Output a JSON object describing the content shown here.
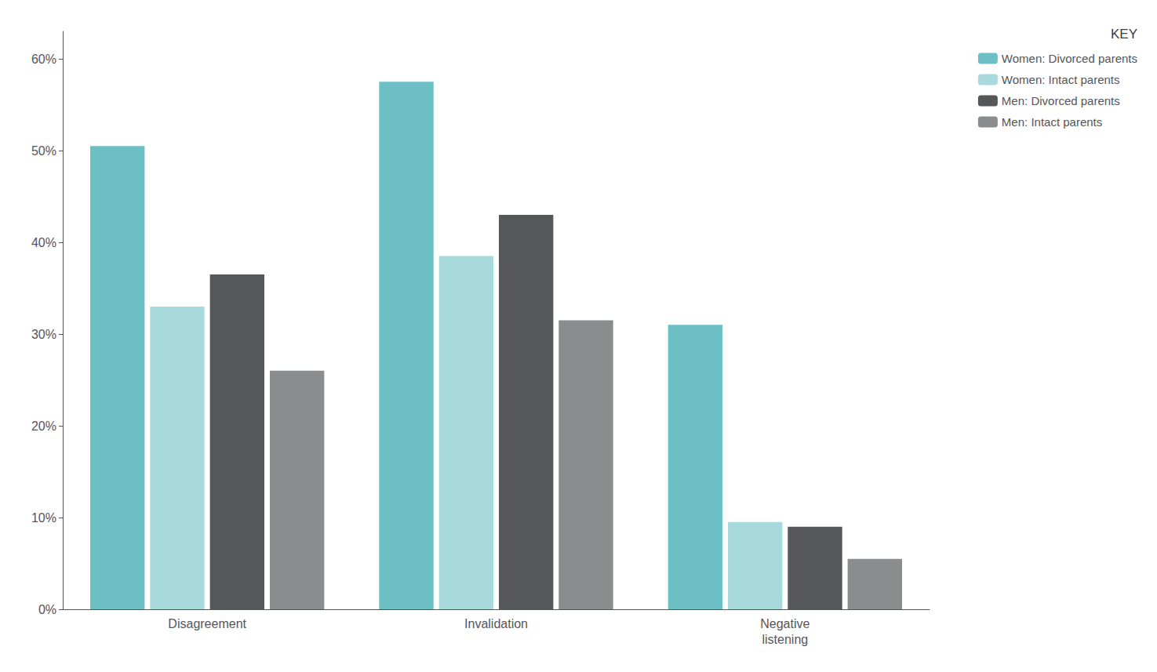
{
  "chart_data": {
    "type": "bar",
    "legend_title": "KEY",
    "categories": [
      "Disagreement",
      "Invalidation",
      "Negative\nlistening"
    ],
    "series": [
      {
        "name": "Women: Divorced parents",
        "color": "#6BBFC5",
        "values": [
          50.5,
          57.5,
          31.0
        ]
      },
      {
        "name": "Women: Intact parents",
        "color": "#A8D9DC",
        "values": [
          33.0,
          38.5,
          9.5
        ]
      },
      {
        "name": "Men: Divorced parents",
        "color": "#555759",
        "values": [
          36.5,
          43.0,
          9.0
        ]
      },
      {
        "name": "Men: Intact parents",
        "color": "#8A8C8E",
        "values": [
          26.0,
          31.5,
          5.5
        ]
      }
    ],
    "ylim": [
      0,
      63
    ],
    "yticks": [
      {
        "value": 0,
        "label": "0%"
      },
      {
        "value": 10,
        "label": "10%"
      },
      {
        "value": 20,
        "label": "20%"
      },
      {
        "value": 30,
        "label": "30%"
      },
      {
        "value": 40,
        "label": "40%"
      },
      {
        "value": 50,
        "label": "50%"
      },
      {
        "value": 60,
        "label": "60%"
      }
    ],
    "grid": false,
    "legend": "upper right"
  }
}
